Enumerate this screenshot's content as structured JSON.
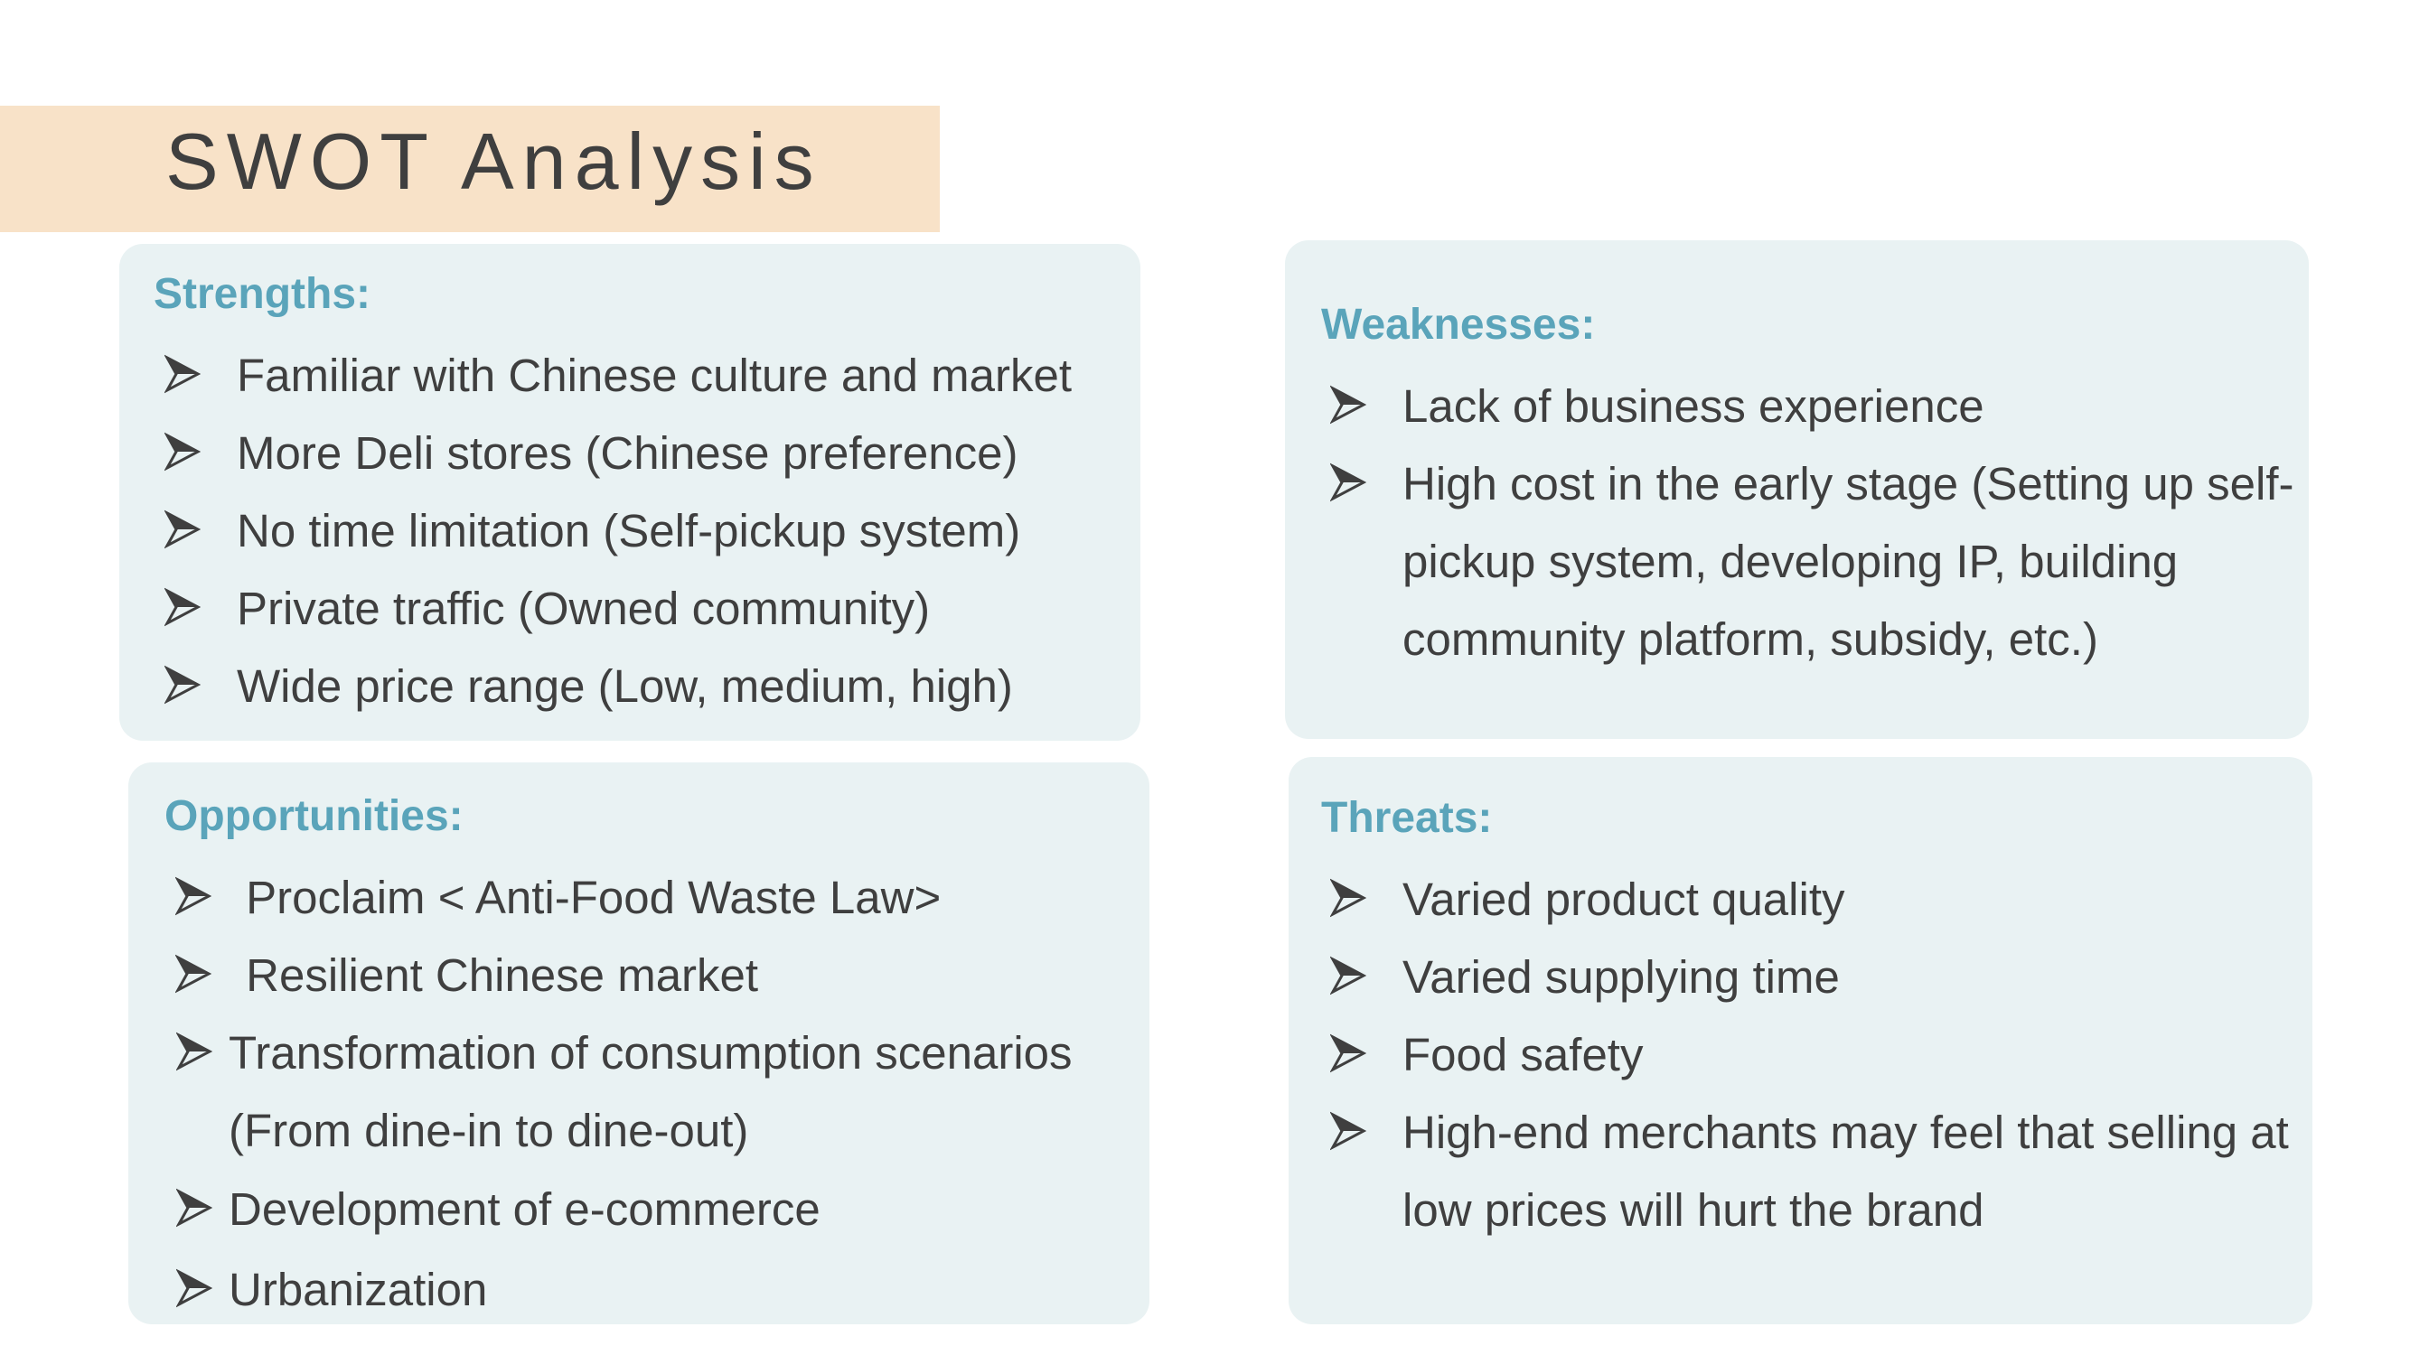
{
  "title": "SWOT Analysis",
  "strengths": {
    "heading": "Strengths:",
    "items": [
      "Familiar with Chinese culture and market",
      "More Deli stores (Chinese preference)",
      "No time limitation (Self-pickup system)",
      "Private traffic (Owned community)",
      "Wide price range (Low, medium, high)"
    ]
  },
  "weaknesses": {
    "heading": "Weaknesses:",
    "items": [
      "Lack of business experience",
      "High cost in the early stage (Setting up self-"
    ],
    "continuation": [
      "pickup system, developing IP, building",
      "community platform, subsidy, etc.)"
    ]
  },
  "opportunities": {
    "heading": "Opportunities:",
    "items": [
      " Proclaim < Anti-Food Waste Law>",
      " Resilient Chinese market",
      "Transformation of consumption scenarios",
      "Development of e-commerce",
      "Urbanization"
    ],
    "continuation": [
      "(From dine-in to dine-out)"
    ]
  },
  "threats": {
    "heading": "Threats:",
    "items": [
      "Varied product quality",
      "Varied supplying time",
      "Food safety",
      "High-end merchants may feel that selling at"
    ],
    "continuation": [
      "low prices will hurt the brand"
    ]
  },
  "bullet_icon": "arrowhead-bullet",
  "colors": {
    "title_banner": "#f8e2c8",
    "box_background": "#e9f2f3",
    "heading_color": "#5aa4ba",
    "text_color": "#3f3f3f"
  }
}
